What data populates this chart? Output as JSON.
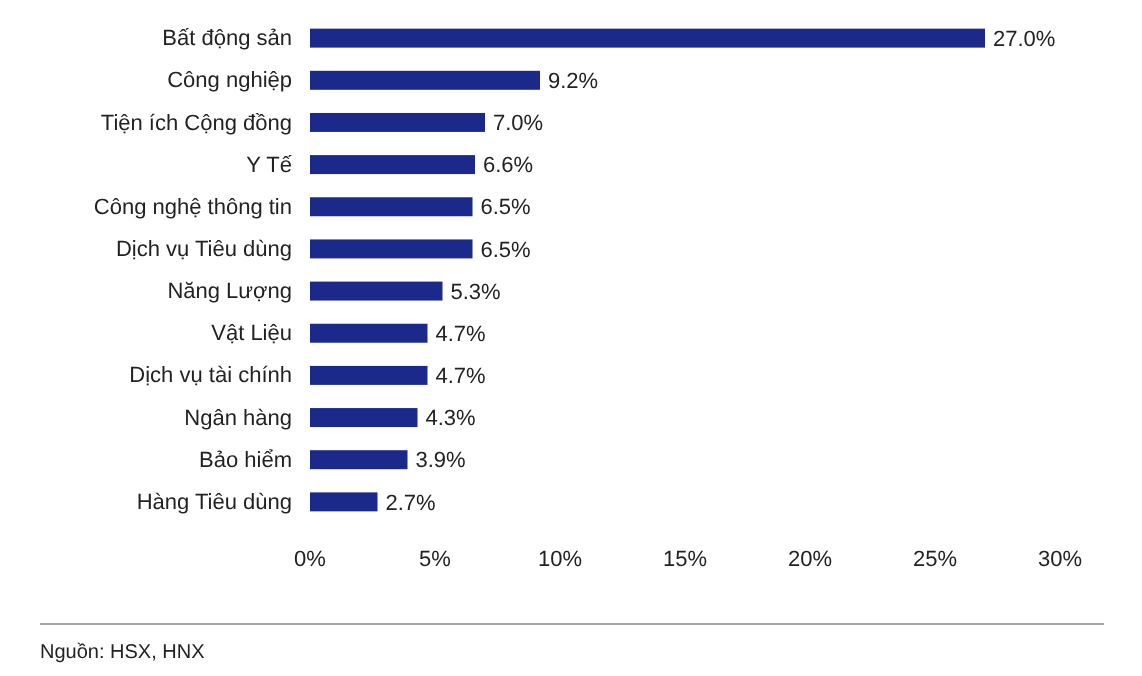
{
  "chart_data": {
    "type": "bar",
    "orientation": "horizontal",
    "categories": [
      "Bất động sản",
      "Công nghiệp",
      "Tiện ích Cộng đồng",
      "Y Tế",
      "Công nghệ thông tin",
      "Dịch vụ Tiêu dùng",
      "Năng Lượng",
      "Vật Liệu",
      "Dịch vụ tài chính",
      "Ngân hàng",
      "Bảo hiểm",
      "Hàng Tiêu dùng"
    ],
    "values": [
      27.0,
      9.2,
      7.0,
      6.6,
      6.5,
      6.5,
      5.3,
      4.7,
      4.7,
      4.3,
      3.9,
      2.7
    ],
    "value_labels": [
      "27.0%",
      "9.2%",
      "7.0%",
      "6.6%",
      "6.5%",
      "6.5%",
      "5.3%",
      "4.7%",
      "4.7%",
      "4.3%",
      "3.9%",
      "2.7%"
    ],
    "color": "#1b2a8a",
    "xlim": [
      0,
      30
    ],
    "xticks": [
      {
        "value": 0,
        "label": "0%"
      },
      {
        "value": 5,
        "label": "5%"
      },
      {
        "value": 10,
        "label": "10%"
      },
      {
        "value": 15,
        "label": "15%"
      },
      {
        "value": 20,
        "label": "20%"
      },
      {
        "value": 25,
        "label": "25%"
      },
      {
        "value": 30,
        "label": "30%"
      }
    ],
    "grid": false,
    "annotations": [
      "Nguồn: HSX, HNX"
    ]
  }
}
